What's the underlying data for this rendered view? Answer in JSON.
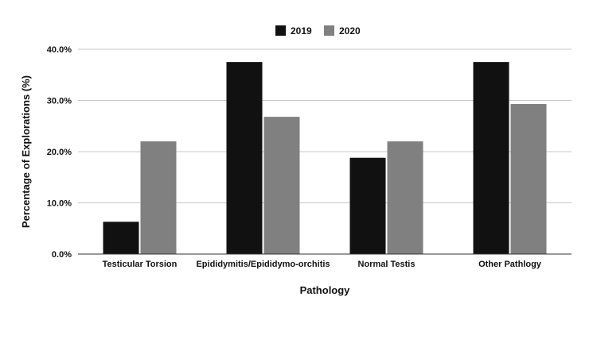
{
  "chart_data": {
    "type": "bar",
    "categories": [
      "Testicular Torsion",
      "Epididymitis/Epididymo-orchitis",
      "Normal Testis",
      "Other Pathlogy"
    ],
    "series": [
      {
        "name": "2019",
        "values": [
          6.3,
          37.5,
          18.8,
          37.5
        ],
        "color": "#111111"
      },
      {
        "name": "2020",
        "values": [
          22.0,
          26.8,
          22.0,
          29.3
        ],
        "color": "#808080"
      }
    ],
    "xlabel": "Pathology",
    "ylabel": "Percentage of Explorations (%)",
    "ylim": [
      0,
      40
    ],
    "yticks": [
      0,
      10,
      20,
      30,
      40
    ],
    "ytick_labels": [
      "0.0%",
      "10.0%",
      "20.0%",
      "30.0%",
      "40.0%"
    ],
    "grid": true,
    "legend_position": "top-center"
  }
}
